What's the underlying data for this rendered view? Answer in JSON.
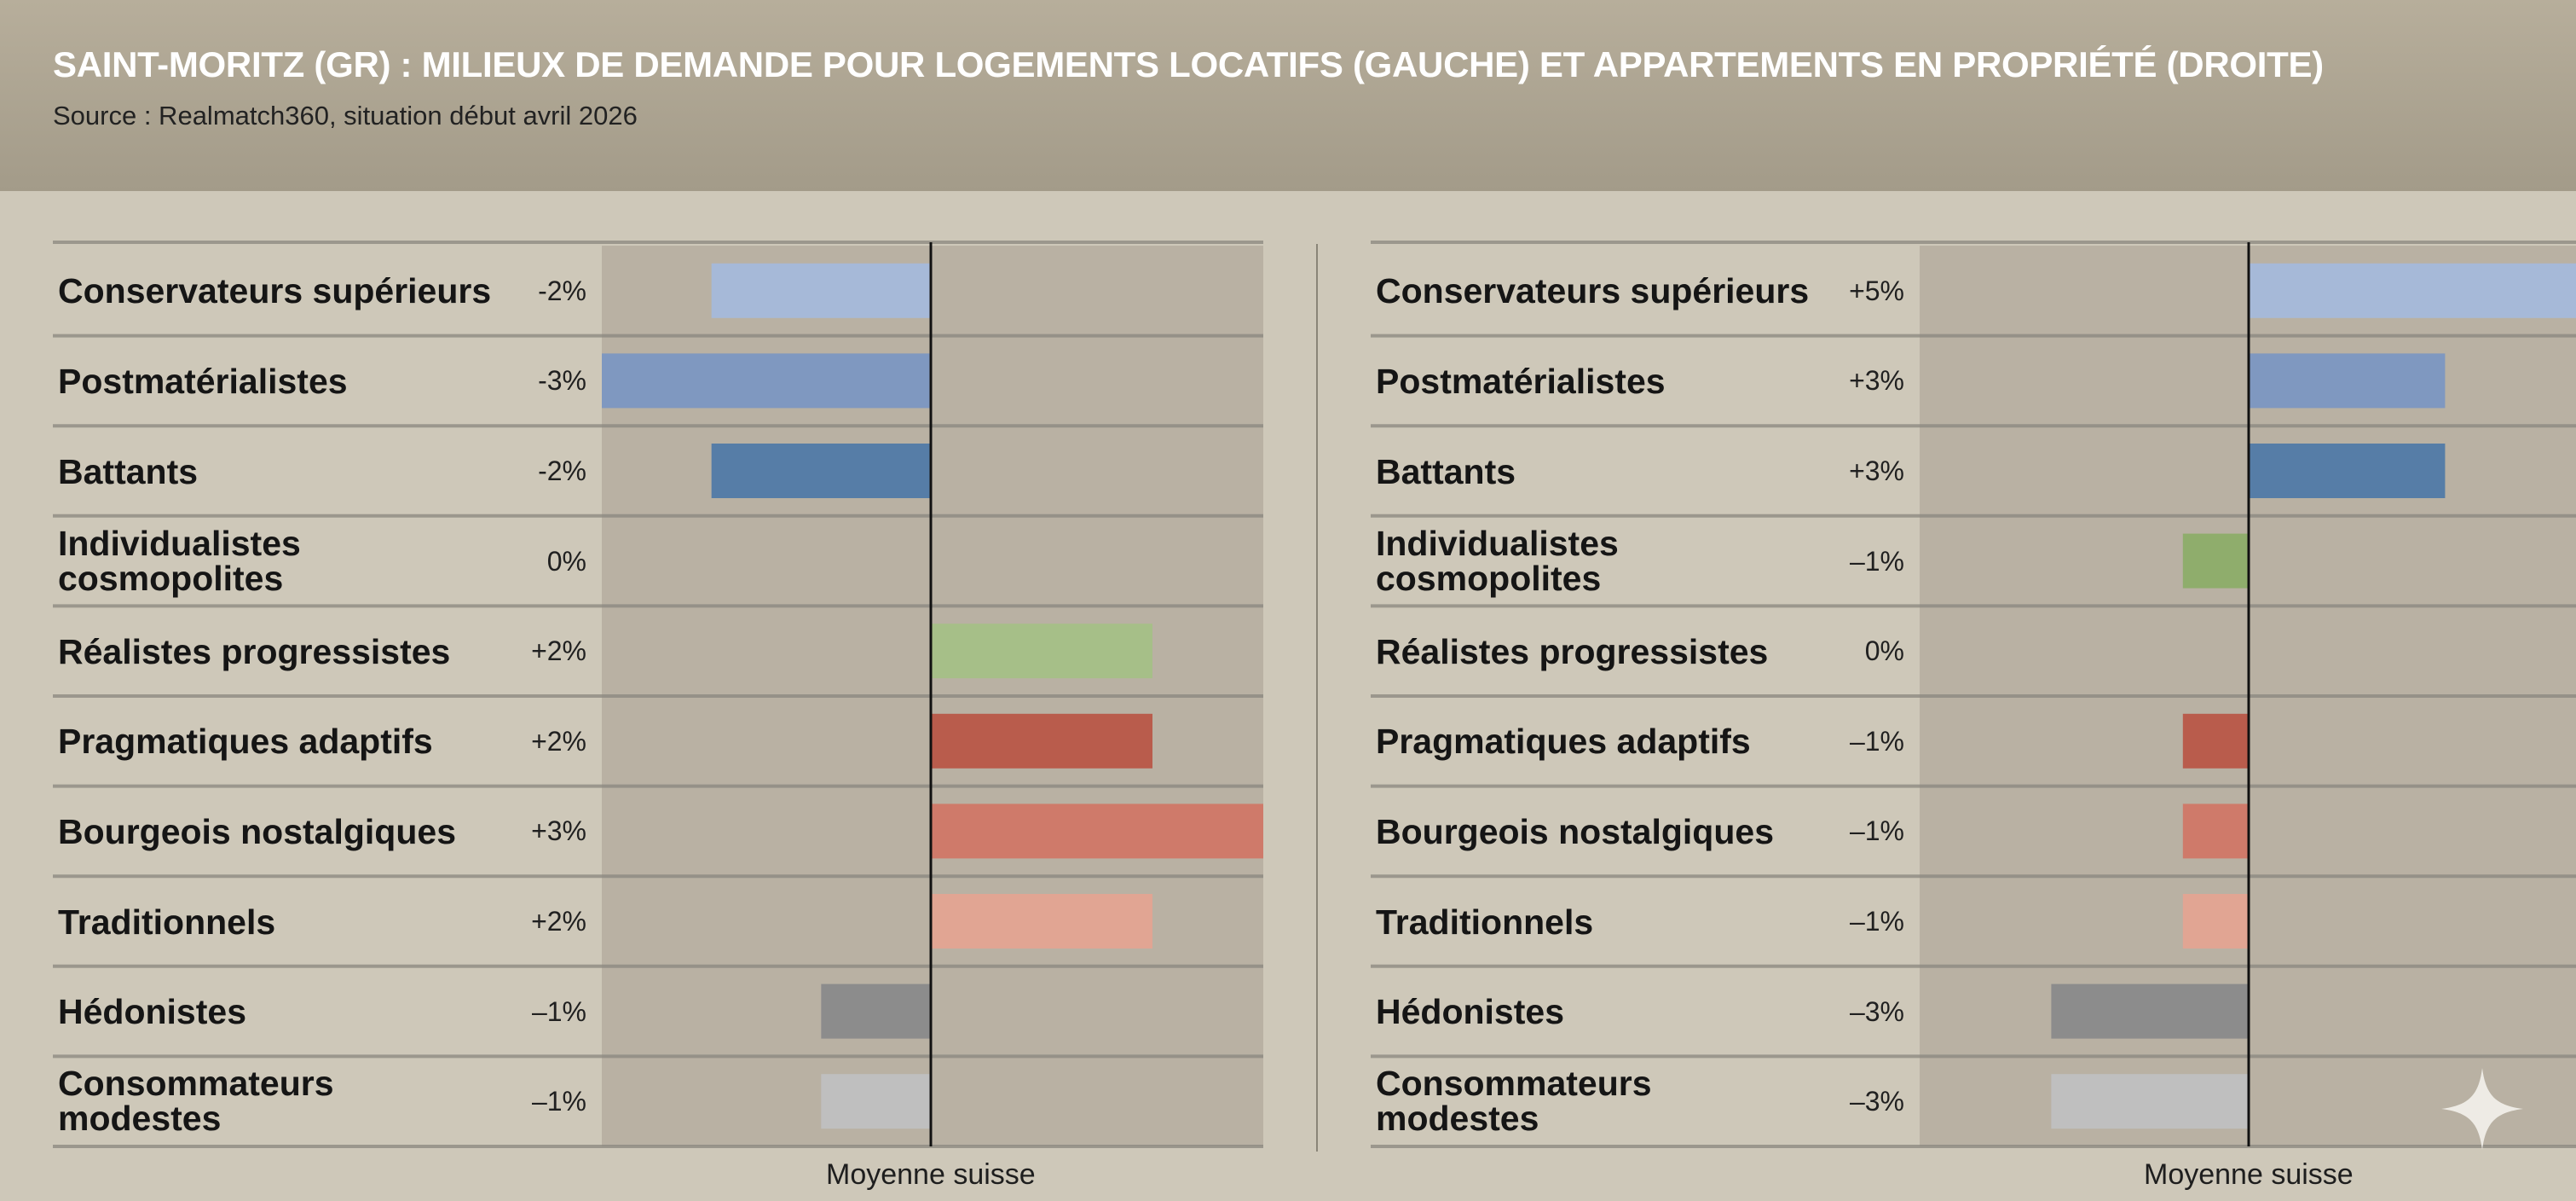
{
  "header": {
    "title": "SAINT-MORITZ (GR) : MILIEUX DE DEMANDE POUR LOGEMENTS LOCATIFS (GAUCHE) ET APPARTEMENTS EN PROPRIÉTÉ (DROITE)",
    "subtitle": "Source : Realmatch360, situation début avril 2026"
  },
  "chart_data": [
    {
      "type": "bar",
      "orientation": "horizontal",
      "categories": [
        [
          "Conservateurs supérieurs"
        ],
        [
          "Postmatérialistes"
        ],
        [
          "Battants"
        ],
        [
          "Individualistes",
          "cosmopolites"
        ],
        [
          "Réalistes progressistes"
        ],
        [
          "Pragmatiques adaptifs"
        ],
        [
          "Bourgeois nostalgiques"
        ],
        [
          "Traditionnels"
        ],
        [
          "Hédonistes"
        ],
        [
          "Consommateurs",
          "modestes"
        ]
      ],
      "values": [
        -2,
        -3,
        -2,
        0,
        2,
        2,
        3,
        2,
        -1,
        -1
      ],
      "value_labels": [
        "-2%",
        "-3%",
        "-2%",
        "0%",
        "+2%",
        "+2%",
        "+3%",
        "+2%",
        "–1%",
        "–1%"
      ],
      "colors": [
        "#a6b9d8",
        "#7f98c0",
        "#567da7",
        "#9cb27a",
        "#a6bf88",
        "#b95c4c",
        "#cf7a6a",
        "#e1a593",
        "#8c8c8c",
        "#bfbfbf"
      ],
      "xlim": [
        -3,
        3
      ],
      "reference_line": 0,
      "xlabel": "Moyenne suisse"
    },
    {
      "type": "bar",
      "orientation": "horizontal",
      "categories": [
        [
          "Conservateurs supérieurs"
        ],
        [
          "Postmatérialistes"
        ],
        [
          "Battants"
        ],
        [
          "Individualistes",
          "cosmopolites"
        ],
        [
          "Réalistes progressistes"
        ],
        [
          "Pragmatiques adaptifs"
        ],
        [
          "Bourgeois nostalgiques"
        ],
        [
          "Traditionnels"
        ],
        [
          "Hédonistes"
        ],
        [
          "Consommateurs",
          "modestes"
        ]
      ],
      "values": [
        5,
        3,
        3,
        -1,
        0,
        -1,
        -1,
        -1,
        -3,
        -3
      ],
      "value_labels": [
        "+5%",
        "+3%",
        "+3%",
        "–1%",
        "0%",
        "–1%",
        "–1%",
        "–1%",
        "–3%",
        "–3%"
      ],
      "colors": [
        "#a6b9d8",
        "#7f98c0",
        "#567da7",
        "#8fad6c",
        "#a6bf88",
        "#b95c4c",
        "#cf7a6a",
        "#e1a593",
        "#8c8c8c",
        "#bfbfbf"
      ],
      "xlim": [
        -5,
        5
      ],
      "reference_line": 0,
      "xlabel": "Moyenne suisse"
    }
  ]
}
